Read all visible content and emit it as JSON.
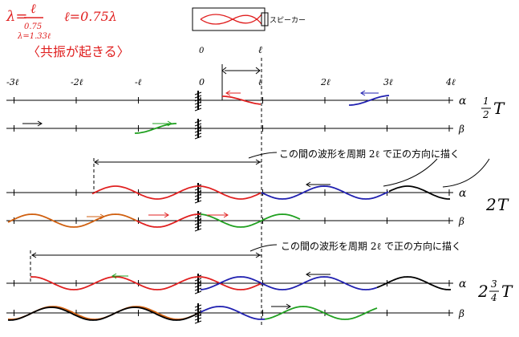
{
  "notes": {
    "formula_lhs": "λ=",
    "formula_num": "ℓ",
    "formula_den": "0.75",
    "formula2": "ℓ=0.75λ",
    "formula3": "λ=1.33ℓ",
    "resonance": "〈共振が起きる〉",
    "speaker": "スピーカー"
  },
  "axis_labels": [
    "-3ℓ",
    "-2ℓ",
    "-ℓ",
    "0",
    "ℓ",
    "2ℓ",
    "3ℓ",
    "4ℓ"
  ],
  "top_labels": [
    "0",
    "ℓ"
  ],
  "rows": [
    {
      "alpha": "α",
      "beta": "β",
      "time": {
        "num": "1",
        "den": "2",
        "unit": "T"
      }
    },
    {
      "alpha": "α",
      "beta": "β",
      "time": {
        "whole": "2",
        "unit": "T"
      }
    },
    {
      "alpha": "α",
      "beta": "β",
      "time": {
        "whole": "2",
        "num": "3",
        "den": "4",
        "unit": "T"
      }
    }
  ],
  "annotations": [
    "この間の波形を周期 2ℓ で正の方向に描く",
    "この間の波形を周期 2ℓ で正の方向に描く"
  ]
}
